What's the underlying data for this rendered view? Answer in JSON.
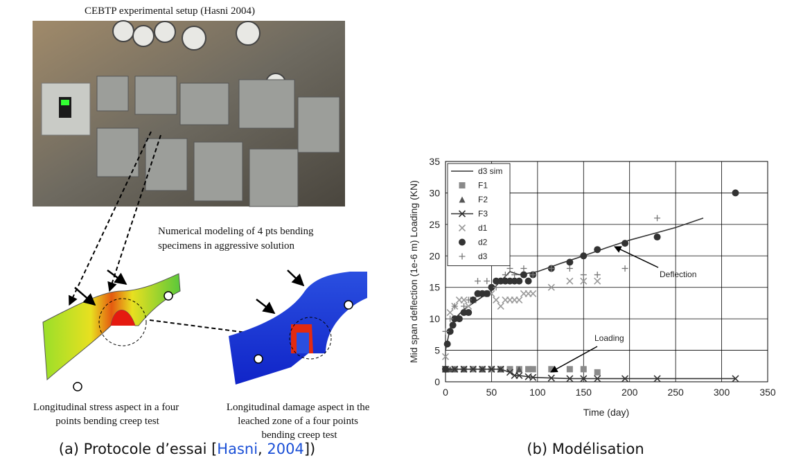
{
  "figure": {
    "photo_title": "CEBTP experimental setup (Hasni 2004)",
    "model_note": [
      "Numerical modeling of 4 pts bending",
      "specimens in aggressive solution"
    ],
    "stress_caption": [
      "Longitudinal stress aspect in a four",
      "points bending creep test"
    ],
    "damage_caption": [
      "Longitudinal damage aspect in the",
      "leached zone of a four points",
      "bending creep test"
    ],
    "caption_a": {
      "prefix": "(a) Protocole d’essai [",
      "cite_author": "Hasni",
      "sep": ", ",
      "cite_year": "2004",
      "suffix": "])"
    },
    "caption_b": "(b) Modélisation"
  },
  "chart_data": {
    "type": "scatter",
    "x_label": "Time (day)",
    "y_label": "Mid span deflection (1e-6 m) Loading (KN)",
    "xlim": [
      0,
      350
    ],
    "xticks": [
      0,
      50,
      100,
      150,
      200,
      250,
      300,
      350
    ],
    "ylim": [
      0,
      35
    ],
    "yticks": [
      0,
      5,
      10,
      15,
      20,
      25,
      30,
      35
    ],
    "grid": true,
    "legend": "upper left",
    "annotations": [
      "Deflection",
      "Loading"
    ],
    "series": [
      {
        "name": "d3 sim",
        "color": "#333333",
        "marker": "none",
        "line": true,
        "x": [
          0,
          5,
          10,
          20,
          30,
          40,
          50,
          60,
          70,
          80,
          100,
          125,
          150,
          175,
          200,
          225,
          250,
          280
        ],
        "values": [
          5,
          8.5,
          10,
          11.5,
          12.5,
          13.5,
          14.5,
          16,
          17.5,
          17,
          17.5,
          18.8,
          20,
          21.3,
          22.5,
          23.5,
          24.5,
          26
        ]
      },
      {
        "name": "F1",
        "color": "#8a8a8a",
        "marker": "square",
        "line": false,
        "x": [
          0,
          10,
          20,
          30,
          40,
          50,
          60,
          70,
          80,
          90,
          95,
          115,
          135,
          150,
          165
        ],
        "values": [
          2,
          2,
          2,
          2,
          2,
          2,
          2,
          2,
          2,
          2,
          2,
          2,
          2,
          2,
          1.5
        ]
      },
      {
        "name": "F2",
        "color": "#555555",
        "marker": "triangle",
        "line": false,
        "x": [
          0,
          5,
          10,
          20,
          40,
          60,
          80
        ],
        "values": [
          2,
          2,
          2,
          2,
          2,
          2,
          2
        ]
      },
      {
        "name": "F3",
        "color": "#333333",
        "marker": "x",
        "line": true,
        "x": [
          0,
          10,
          20,
          30,
          40,
          50,
          60,
          70,
          75,
          80,
          90,
          95,
          115,
          135,
          150,
          165,
          195,
          230,
          315
        ],
        "values": [
          2,
          2,
          2,
          2,
          2,
          2,
          2,
          1.5,
          1,
          1,
          0.8,
          0.7,
          0.6,
          0.5,
          0.5,
          0.5,
          0.5,
          0.5,
          0.5
        ]
      },
      {
        "name": "d1",
        "color": "#999999",
        "marker": "x",
        "line": false,
        "x": [
          0,
          5,
          10,
          15,
          20,
          25,
          30,
          40,
          50,
          55,
          60,
          65,
          70,
          75,
          80,
          85,
          90,
          95,
          115,
          135,
          150,
          165
        ],
        "values": [
          4,
          11,
          12,
          13,
          13,
          12,
          13,
          14,
          14,
          13,
          12,
          13,
          13,
          13,
          13,
          14,
          14,
          14,
          15,
          16,
          16,
          16
        ]
      },
      {
        "name": "d2",
        "color": "#333333",
        "marker": "circle",
        "line": false,
        "x": [
          0,
          2,
          5,
          8,
          10,
          15,
          20,
          25,
          30,
          35,
          40,
          45,
          50,
          55,
          60,
          65,
          70,
          75,
          80,
          85,
          90,
          95,
          115,
          135,
          150,
          165,
          195,
          230,
          315
        ],
        "values": [
          2,
          6,
          8,
          9,
          10,
          10,
          11,
          11,
          13,
          14,
          14,
          14,
          15,
          16,
          16,
          16,
          16,
          16,
          16,
          17,
          16,
          17,
          18,
          19,
          20,
          21,
          22,
          23,
          30
        ]
      },
      {
        "name": "d3",
        "color": "#777777",
        "marker": "plus",
        "line": false,
        "x": [
          0,
          5,
          10,
          20,
          25,
          35,
          45,
          55,
          65,
          70,
          75,
          85,
          95,
          115,
          135,
          150,
          165,
          195,
          230
        ],
        "values": [
          8,
          10,
          12,
          12,
          13,
          16,
          16,
          15,
          17,
          18,
          17,
          18,
          17,
          18,
          18,
          17,
          17,
          18,
          26
        ]
      }
    ]
  }
}
